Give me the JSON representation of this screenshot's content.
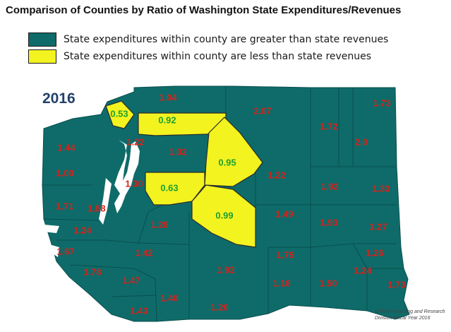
{
  "title": "Comparison of Counties by Ratio of Washington State Expenditures/Revenues",
  "legend": [
    {
      "label": "State expenditures within county are greater than state revenues",
      "color": "#0e6b69"
    },
    {
      "label": "State expenditures within county are less than state revenues",
      "color": "#f3f320"
    }
  ],
  "year": "2016",
  "colors": {
    "greater": "#0e6b69",
    "less": "#f3f320",
    "value_high": "#d4231c",
    "value_low": "#1ea12e",
    "water": "#ffffff"
  },
  "counties": [
    {
      "value": "1.04",
      "category": "greater"
    },
    {
      "value": "2.07",
      "category": "greater"
    },
    {
      "value": "1.73",
      "category": "greater"
    },
    {
      "value": "0.53",
      "category": "less"
    },
    {
      "value": "0.92",
      "category": "less"
    },
    {
      "value": "1.72",
      "category": "greater"
    },
    {
      "value": "1.44",
      "category": "greater"
    },
    {
      "value": "1.22",
      "category": "greater"
    },
    {
      "value": "1.02",
      "category": "greater"
    },
    {
      "value": "2.0",
      "category": "greater"
    },
    {
      "value": "0.95",
      "category": "less"
    },
    {
      "value": "1.00",
      "category": "greater"
    },
    {
      "value": "1.22",
      "category": "greater"
    },
    {
      "value": "1.30",
      "category": "greater"
    },
    {
      "value": "0.63",
      "category": "less"
    },
    {
      "value": "1.92",
      "category": "greater"
    },
    {
      "value": "1.33",
      "category": "greater"
    },
    {
      "value": "1.71",
      "category": "greater"
    },
    {
      "value": "1.88",
      "category": "greater"
    },
    {
      "value": "0.99",
      "category": "less"
    },
    {
      "value": "1.49",
      "category": "greater"
    },
    {
      "value": "1.93",
      "category": "greater"
    },
    {
      "value": "1.28",
      "category": "greater"
    },
    {
      "value": "1.27",
      "category": "greater"
    },
    {
      "value": "1.24",
      "category": "greater"
    },
    {
      "value": "1.67",
      "category": "greater"
    },
    {
      "value": "1.42",
      "category": "greater"
    },
    {
      "value": "1.75",
      "category": "greater"
    },
    {
      "value": "1.26",
      "category": "greater"
    },
    {
      "value": "1.78",
      "category": "greater"
    },
    {
      "value": "1.92",
      "category": "greater"
    },
    {
      "value": "1.24",
      "category": "greater"
    },
    {
      "value": "1.47",
      "category": "greater"
    },
    {
      "value": "1.18",
      "category": "greater"
    },
    {
      "value": "1.50",
      "category": "greater"
    },
    {
      "value": "1.73",
      "category": "greater"
    },
    {
      "value": "1.40",
      "category": "greater"
    },
    {
      "value": "1.20",
      "category": "greater"
    },
    {
      "value": "1.43",
      "category": "greater"
    }
  ],
  "source_note": [
    "OFM Forecasting and Research",
    "Division Fiscal Year 2016"
  ]
}
